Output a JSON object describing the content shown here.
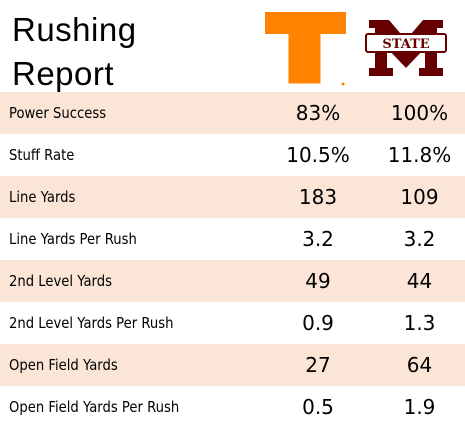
{
  "title": {
    "line1": "Rushing",
    "line2": "Report"
  },
  "teams": [
    {
      "logo_icon": "tennessee-power-t-logo",
      "color": "#ff8200"
    },
    {
      "logo_icon": "mississippi-state-m-logo",
      "color": "#660000",
      "logo_text": "STATE"
    }
  ],
  "shade_color": "#fbe5d6",
  "rows": [
    {
      "label": "Power Success",
      "team1": "83%",
      "team2": "100%"
    },
    {
      "label": "Stuff Rate",
      "team1": "10.5%",
      "team2": "11.8%"
    },
    {
      "label": "Line Yards",
      "team1": "183",
      "team2": "109"
    },
    {
      "label": "Line Yards Per Rush",
      "team1": "3.2",
      "team2": "3.2"
    },
    {
      "label": "2nd Level Yards",
      "team1": "49",
      "team2": "44"
    },
    {
      "label": "2nd Level Yards Per Rush",
      "team1": "0.9",
      "team2": "1.3"
    },
    {
      "label": "Open Field Yards",
      "team1": "27",
      "team2": "64"
    },
    {
      "label": "Open Field Yards Per Rush",
      "team1": "0.5",
      "team2": "1.9"
    }
  ]
}
